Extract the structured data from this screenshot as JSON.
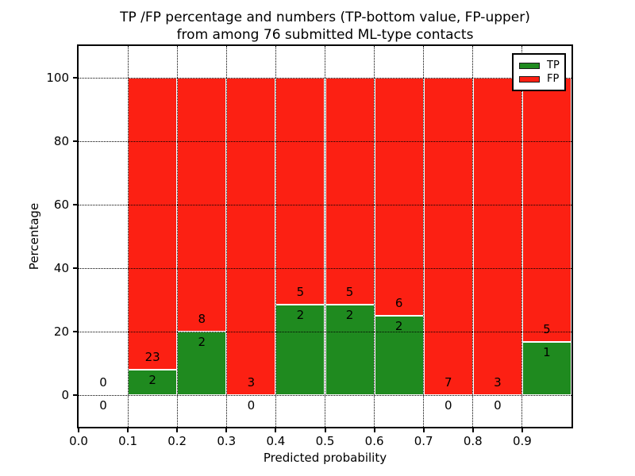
{
  "figure": {
    "title_line1": "TP /FP percentage and numbers (TP-bottom value, FP-upper)",
    "title_line2": "from among 76 submitted ML-type contacts"
  },
  "chart_data": {
    "type": "bar",
    "stacked": true,
    "title": "TP /FP percentage and numbers (TP-bottom value, FP-upper)\nfrom among 76 submitted ML-type contacts",
    "xlabel": "Predicted probability",
    "ylabel": "Percentage",
    "xlim": [
      0.0,
      1.0
    ],
    "ylim": [
      -10,
      110
    ],
    "grid": true,
    "grid_style": "dotted",
    "legend_position": "upper right",
    "legend": [
      {
        "label": "TP",
        "color": "#1f8a1f"
      },
      {
        "label": "FP",
        "color": "#fc2013"
      }
    ],
    "colors": {
      "tp": "#1f8a1f",
      "fp": "#fc2013",
      "bar_edge": "#ffffff",
      "axis": "#000000"
    },
    "xticks": [
      "0.0",
      "0.1",
      "0.2",
      "0.3",
      "0.4",
      "0.5",
      "0.6",
      "0.7",
      "0.8",
      "0.9"
    ],
    "yticks": [
      "0",
      "20",
      "40",
      "60",
      "80",
      "100"
    ],
    "bins": [
      {
        "range": [
          0.0,
          0.1
        ],
        "tp": 0,
        "fp": 0,
        "tp_pct": null,
        "fp_pct": null,
        "tp_label": "0",
        "fp_label": "0"
      },
      {
        "range": [
          0.1,
          0.2
        ],
        "tp": 2,
        "fp": 23,
        "tp_pct": 8.0,
        "fp_pct": 92.0,
        "tp_label": "2",
        "fp_label": "23"
      },
      {
        "range": [
          0.2,
          0.3
        ],
        "tp": 2,
        "fp": 8,
        "tp_pct": 20.0,
        "fp_pct": 80.0,
        "tp_label": "2",
        "fp_label": "8"
      },
      {
        "range": [
          0.3,
          0.4
        ],
        "tp": 0,
        "fp": 3,
        "tp_pct": 0.0,
        "fp_pct": 100.0,
        "tp_label": "0",
        "fp_label": "3"
      },
      {
        "range": [
          0.4,
          0.5
        ],
        "tp": 2,
        "fp": 5,
        "tp_pct": 28.6,
        "fp_pct": 71.4,
        "tp_label": "2",
        "fp_label": "5"
      },
      {
        "range": [
          0.5,
          0.6
        ],
        "tp": 2,
        "fp": 5,
        "tp_pct": 28.6,
        "fp_pct": 71.4,
        "tp_label": "2",
        "fp_label": "5"
      },
      {
        "range": [
          0.6,
          0.7
        ],
        "tp": 2,
        "fp": 6,
        "tp_pct": 25.0,
        "fp_pct": 75.0,
        "tp_label": "2",
        "fp_label": "6"
      },
      {
        "range": [
          0.7,
          0.8
        ],
        "tp": 0,
        "fp": 7,
        "tp_pct": 0.0,
        "fp_pct": 100.0,
        "tp_label": "0",
        "fp_label": "7"
      },
      {
        "range": [
          0.8,
          0.9
        ],
        "tp": 0,
        "fp": 3,
        "tp_pct": 0.0,
        "fp_pct": 100.0,
        "tp_label": "0",
        "fp_label": "3"
      },
      {
        "range": [
          0.9,
          1.0
        ],
        "tp": 1,
        "fp": 5,
        "tp_pct": 16.7,
        "fp_pct": 83.3,
        "tp_label": "1",
        "fp_label": "5"
      }
    ]
  }
}
